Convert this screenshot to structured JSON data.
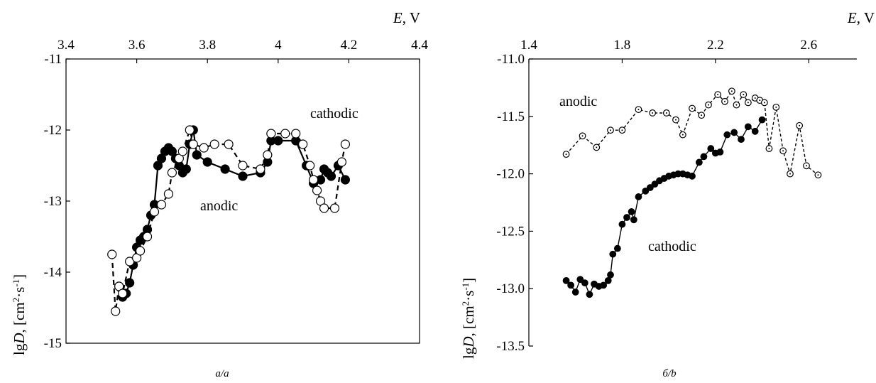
{
  "chart_data": [
    {
      "type": "scatter",
      "panel_label": "a/a",
      "xlabel_italic": "E",
      "xlabel_rest": ", V",
      "ylabel_prefix": "lg",
      "ylabel_italic": "D",
      "ylabel_unit_open": ", [cm",
      "ylabel_sup1": "2",
      "ylabel_mid": "·s",
      "ylabel_sup2": "-1",
      "ylabel_unit_close": "]",
      "xlim": [
        3.4,
        4.4
      ],
      "ylim": [
        -15,
        -11
      ],
      "x_ticks": [
        "3.4",
        "3.6",
        "3.8",
        "4",
        "4.2",
        "4.4"
      ],
      "y_ticks": [
        "-11",
        "-12",
        "-13",
        "-14",
        "-15"
      ],
      "annotations": [
        "cathodic",
        "anodic"
      ],
      "series": [
        {
          "style": "filled-solid",
          "points": [
            [
              3.55,
              -14.2
            ],
            [
              3.56,
              -14.35
            ],
            [
              3.57,
              -14.3
            ],
            [
              3.58,
              -14.15
            ],
            [
              3.59,
              -13.9
            ],
            [
              3.6,
              -13.65
            ],
            [
              3.61,
              -13.55
            ],
            [
              3.62,
              -13.5
            ],
            [
              3.63,
              -13.4
            ],
            [
              3.64,
              -13.2
            ],
            [
              3.65,
              -13.05
            ],
            [
              3.66,
              -12.5
            ],
            [
              3.67,
              -12.4
            ],
            [
              3.68,
              -12.3
            ],
            [
              3.69,
              -12.25
            ],
            [
              3.7,
              -12.3
            ],
            [
              3.71,
              -12.4
            ],
            [
              3.72,
              -12.5
            ],
            [
              3.73,
              -12.6
            ],
            [
              3.74,
              -12.55
            ],
            [
              3.75,
              -12.2
            ],
            [
              3.76,
              -12.0
            ],
            [
              3.77,
              -12.35
            ],
            [
              3.8,
              -12.45
            ],
            [
              3.85,
              -12.55
            ],
            [
              3.9,
              -12.65
            ],
            [
              3.95,
              -12.6
            ],
            [
              3.97,
              -12.45
            ],
            [
              3.98,
              -12.15
            ],
            [
              4.0,
              -12.15
            ],
            [
              4.05,
              -12.15
            ],
            [
              4.08,
              -12.5
            ],
            [
              4.1,
              -12.75
            ],
            [
              4.12,
              -12.7
            ],
            [
              4.13,
              -12.55
            ],
            [
              4.14,
              -12.6
            ],
            [
              4.15,
              -12.65
            ],
            [
              4.17,
              -12.5
            ],
            [
              4.19,
              -12.7
            ]
          ]
        },
        {
          "style": "open-dashed",
          "points": [
            [
              3.53,
              -13.75
            ],
            [
              3.54,
              -14.55
            ],
            [
              3.55,
              -14.2
            ],
            [
              3.56,
              -14.3
            ],
            [
              3.58,
              -13.85
            ],
            [
              3.6,
              -13.8
            ],
            [
              3.61,
              -13.7
            ],
            [
              3.63,
              -13.5
            ],
            [
              3.65,
              -13.15
            ],
            [
              3.67,
              -13.05
            ],
            [
              3.69,
              -12.9
            ],
            [
              3.7,
              -12.6
            ],
            [
              3.72,
              -12.4
            ],
            [
              3.73,
              -12.3
            ],
            [
              3.75,
              -12.0
            ],
            [
              3.76,
              -12.2
            ],
            [
              3.79,
              -12.25
            ],
            [
              3.82,
              -12.2
            ],
            [
              3.86,
              -12.2
            ],
            [
              3.9,
              -12.5
            ],
            [
              3.95,
              -12.55
            ],
            [
              3.97,
              -12.35
            ],
            [
              3.98,
              -12.05
            ],
            [
              4.02,
              -12.05
            ],
            [
              4.05,
              -12.05
            ],
            [
              4.07,
              -12.2
            ],
            [
              4.09,
              -12.5
            ],
            [
              4.1,
              -12.7
            ],
            [
              4.11,
              -12.85
            ],
            [
              4.12,
              -13.0
            ],
            [
              4.13,
              -13.1
            ],
            [
              4.16,
              -13.1
            ],
            [
              4.18,
              -12.45
            ],
            [
              4.19,
              -12.2
            ]
          ]
        }
      ]
    },
    {
      "type": "line",
      "panel_label": "б/b",
      "xlabel_italic": "E",
      "xlabel_rest": ", V",
      "ylabel_prefix": "lg",
      "ylabel_italic": "D",
      "ylabel_unit_open": ", [cm",
      "ylabel_sup1": "2",
      "ylabel_mid": "·s",
      "ylabel_sup2": "-1",
      "ylabel_unit_close": "]",
      "xlim": [
        1.4,
        2.8
      ],
      "ylim": [
        -13.5,
        -11.0
      ],
      "x_ticks": [
        "1.4",
        "1.8",
        "2.2",
        "2.6"
      ],
      "x_tick_values": [
        1.4,
        1.8,
        2.2,
        2.6
      ],
      "y_ticks": [
        "-11.0",
        "-11.5",
        "-12.0",
        "-12.5",
        "-13.0",
        "-13.5"
      ],
      "annotations": [
        "anodic",
        "cathodic"
      ],
      "series": [
        {
          "style": "open-dashed",
          "points": [
            [
              1.56,
              -11.83
            ],
            [
              1.63,
              -11.67
            ],
            [
              1.69,
              -11.77
            ],
            [
              1.75,
              -11.62
            ],
            [
              1.8,
              -11.62
            ],
            [
              1.87,
              -11.44
            ],
            [
              1.93,
              -11.47
            ],
            [
              1.99,
              -11.47
            ],
            [
              2.03,
              -11.53
            ],
            [
              2.06,
              -11.66
            ],
            [
              2.1,
              -11.43
            ],
            [
              2.14,
              -11.49
            ],
            [
              2.17,
              -11.4
            ],
            [
              2.21,
              -11.31
            ],
            [
              2.24,
              -11.37
            ],
            [
              2.27,
              -11.28
            ],
            [
              2.29,
              -11.4
            ],
            [
              2.32,
              -11.31
            ],
            [
              2.34,
              -11.38
            ],
            [
              2.37,
              -11.34
            ],
            [
              2.39,
              -11.36
            ],
            [
              2.41,
              -11.38
            ],
            [
              2.43,
              -11.78
            ],
            [
              2.46,
              -11.42
            ],
            [
              2.49,
              -11.8
            ],
            [
              2.52,
              -12.0
            ],
            [
              2.56,
              -11.58
            ],
            [
              2.59,
              -11.93
            ],
            [
              2.64,
              -12.01
            ]
          ]
        },
        {
          "style": "filled-solid",
          "points": [
            [
              1.56,
              -12.93
            ],
            [
              1.58,
              -12.97
            ],
            [
              1.6,
              -13.03
            ],
            [
              1.62,
              -12.92
            ],
            [
              1.64,
              -12.95
            ],
            [
              1.66,
              -13.05
            ],
            [
              1.68,
              -12.96
            ],
            [
              1.7,
              -12.98
            ],
            [
              1.72,
              -12.97
            ],
            [
              1.74,
              -12.93
            ],
            [
              1.75,
              -12.88
            ],
            [
              1.76,
              -12.7
            ],
            [
              1.78,
              -12.65
            ],
            [
              1.8,
              -12.44
            ],
            [
              1.82,
              -12.38
            ],
            [
              1.84,
              -12.33
            ],
            [
              1.85,
              -12.4
            ],
            [
              1.87,
              -12.2
            ],
            [
              1.9,
              -12.15
            ],
            [
              1.92,
              -12.12
            ],
            [
              1.94,
              -12.09
            ],
            [
              1.96,
              -12.06
            ],
            [
              1.98,
              -12.04
            ],
            [
              2.0,
              -12.02
            ],
            [
              2.02,
              -12.01
            ],
            [
              2.04,
              -12.0
            ],
            [
              2.06,
              -12.0
            ],
            [
              2.08,
              -12.01
            ],
            [
              2.1,
              -12.02
            ],
            [
              2.13,
              -11.9
            ],
            [
              2.15,
              -11.85
            ],
            [
              2.18,
              -11.78
            ],
            [
              2.2,
              -11.82
            ],
            [
              2.22,
              -11.81
            ],
            [
              2.25,
              -11.66
            ],
            [
              2.28,
              -11.64
            ],
            [
              2.31,
              -11.7
            ],
            [
              2.34,
              -11.59
            ],
            [
              2.37,
              -11.63
            ],
            [
              2.4,
              -11.53
            ]
          ]
        }
      ]
    }
  ]
}
